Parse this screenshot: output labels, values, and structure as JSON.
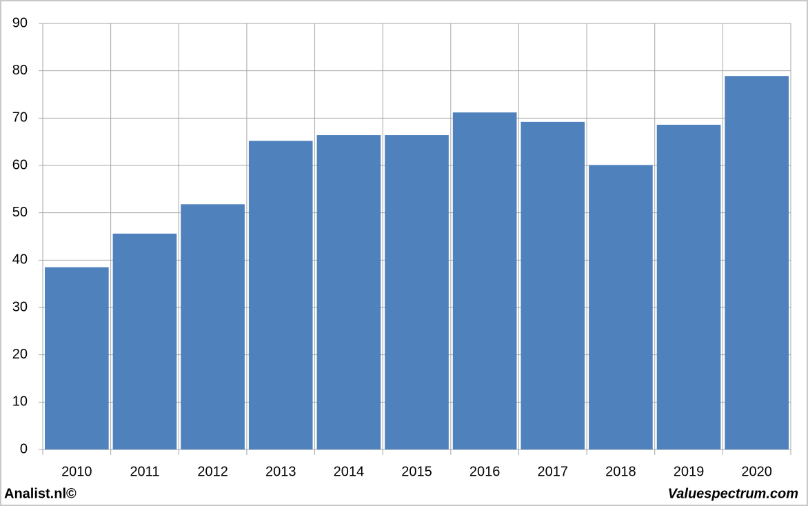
{
  "chart_data": {
    "type": "bar",
    "categories": [
      "2010",
      "2011",
      "2012",
      "2013",
      "2014",
      "2015",
      "2016",
      "2017",
      "2018",
      "2019",
      "2020"
    ],
    "values": [
      38.5,
      45.6,
      51.8,
      65.2,
      66.4,
      66.4,
      71.2,
      69.2,
      60.1,
      68.6,
      78.9
    ],
    "color": "#4f81bd",
    "ylim": [
      0,
      90
    ],
    "yticks": [
      0,
      10,
      20,
      30,
      40,
      50,
      60,
      70,
      80,
      90
    ],
    "grid": true,
    "credits": [
      "Analist.nl©",
      "Valuespectrum.com"
    ]
  }
}
